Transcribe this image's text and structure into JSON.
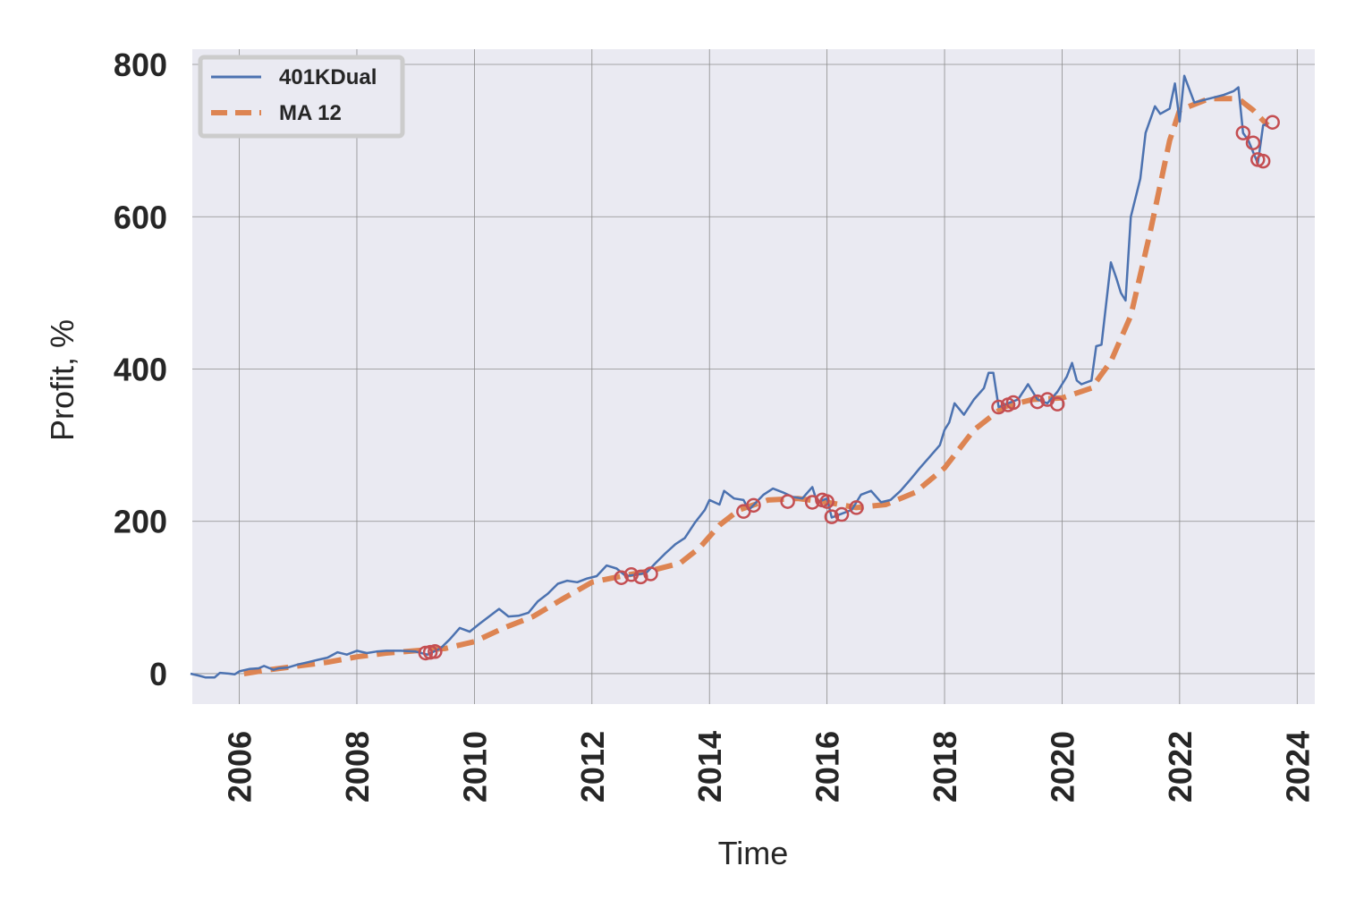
{
  "chart_data": {
    "type": "line",
    "xlabel": "Time",
    "ylabel": "Profit, %",
    "xlim": [
      2005.2,
      2024.3
    ],
    "ylim": [
      -40,
      820
    ],
    "x_ticks": [
      2006,
      2008,
      2010,
      2012,
      2014,
      2016,
      2018,
      2020,
      2022,
      2024
    ],
    "x_tick_labels": [
      "2006",
      "2008",
      "2010",
      "2012",
      "2014",
      "2016",
      "2018",
      "2020",
      "2022",
      "2024"
    ],
    "y_ticks": [
      0,
      200,
      400,
      600,
      800
    ],
    "y_tick_labels": [
      "0",
      "200",
      "400",
      "600",
      "800"
    ],
    "grid": true,
    "legend": {
      "position": "top-left",
      "entries": [
        {
          "label": "401KDual",
          "style": "solid",
          "color": "#4c72b0"
        },
        {
          "label": "MA 12",
          "style": "dashed",
          "color": "#dd8452"
        }
      ]
    },
    "colors": {
      "background": "#eaeaf2",
      "series_line": "#4c72b0",
      "ma_line": "#dd8452",
      "markers": "#c44e52",
      "grid": "#8c8c8c"
    },
    "series": [
      {
        "name": "401KDual",
        "style": "solid",
        "points": [
          [
            2005.17,
            0
          ],
          [
            2005.33,
            -3
          ],
          [
            2005.42,
            -5
          ],
          [
            2005.58,
            -5
          ],
          [
            2005.67,
            1
          ],
          [
            2005.83,
            0
          ],
          [
            2005.92,
            -1
          ],
          [
            2006.0,
            3
          ],
          [
            2006.17,
            6
          ],
          [
            2006.33,
            7
          ],
          [
            2006.42,
            10
          ],
          [
            2006.58,
            5
          ],
          [
            2006.67,
            7
          ],
          [
            2006.83,
            8
          ],
          [
            2007.0,
            12
          ],
          [
            2007.17,
            15
          ],
          [
            2007.33,
            18
          ],
          [
            2007.5,
            21
          ],
          [
            2007.67,
            28
          ],
          [
            2007.83,
            25
          ],
          [
            2008.0,
            30
          ],
          [
            2008.17,
            27
          ],
          [
            2008.33,
            29
          ],
          [
            2008.5,
            30
          ],
          [
            2008.75,
            30
          ],
          [
            2009.0,
            29
          ],
          [
            2009.2,
            25
          ],
          [
            2009.42,
            33
          ],
          [
            2009.58,
            45
          ],
          [
            2009.75,
            60
          ],
          [
            2009.92,
            55
          ],
          [
            2010.08,
            65
          ],
          [
            2010.25,
            75
          ],
          [
            2010.42,
            85
          ],
          [
            2010.58,
            75
          ],
          [
            2010.75,
            76
          ],
          [
            2010.92,
            80
          ],
          [
            2011.08,
            95
          ],
          [
            2011.25,
            105
          ],
          [
            2011.42,
            118
          ],
          [
            2011.58,
            122
          ],
          [
            2011.75,
            120
          ],
          [
            2011.92,
            125
          ],
          [
            2012.08,
            128
          ],
          [
            2012.25,
            142
          ],
          [
            2012.42,
            138
          ],
          [
            2012.58,
            128
          ],
          [
            2012.75,
            130
          ],
          [
            2012.92,
            132
          ],
          [
            2013.08,
            145
          ],
          [
            2013.25,
            158
          ],
          [
            2013.42,
            170
          ],
          [
            2013.58,
            178
          ],
          [
            2013.75,
            198
          ],
          [
            2013.92,
            215
          ],
          [
            2014.0,
            228
          ],
          [
            2014.17,
            222
          ],
          [
            2014.25,
            240
          ],
          [
            2014.42,
            230
          ],
          [
            2014.58,
            228
          ],
          [
            2014.67,
            215
          ],
          [
            2014.92,
            235
          ],
          [
            2015.08,
            243
          ],
          [
            2015.25,
            238
          ],
          [
            2015.42,
            232
          ],
          [
            2015.58,
            230
          ],
          [
            2015.75,
            245
          ],
          [
            2015.83,
            225
          ],
          [
            2016.0,
            230
          ],
          [
            2016.08,
            205
          ],
          [
            2016.25,
            210
          ],
          [
            2016.42,
            215
          ],
          [
            2016.58,
            235
          ],
          [
            2016.75,
            240
          ],
          [
            2016.92,
            225
          ],
          [
            2017.08,
            228
          ],
          [
            2017.25,
            240
          ],
          [
            2017.42,
            255
          ],
          [
            2017.58,
            270
          ],
          [
            2017.75,
            285
          ],
          [
            2017.92,
            300
          ],
          [
            2018.0,
            320
          ],
          [
            2018.08,
            330
          ],
          [
            2018.17,
            355
          ],
          [
            2018.33,
            340
          ],
          [
            2018.5,
            360
          ],
          [
            2018.67,
            375
          ],
          [
            2018.75,
            395
          ],
          [
            2018.83,
            395
          ],
          [
            2018.92,
            350
          ],
          [
            2019.08,
            355
          ],
          [
            2019.25,
            360
          ],
          [
            2019.42,
            380
          ],
          [
            2019.58,
            360
          ],
          [
            2019.75,
            355
          ],
          [
            2019.92,
            370
          ],
          [
            2020.08,
            390
          ],
          [
            2020.17,
            408
          ],
          [
            2020.25,
            385
          ],
          [
            2020.33,
            380
          ],
          [
            2020.5,
            385
          ],
          [
            2020.58,
            430
          ],
          [
            2020.67,
            432
          ],
          [
            2020.83,
            540
          ],
          [
            2020.92,
            520
          ],
          [
            2021.0,
            500
          ],
          [
            2021.08,
            490
          ],
          [
            2021.17,
            600
          ],
          [
            2021.33,
            650
          ],
          [
            2021.42,
            710
          ],
          [
            2021.58,
            745
          ],
          [
            2021.67,
            735
          ],
          [
            2021.83,
            742
          ],
          [
            2021.92,
            775
          ],
          [
            2022.0,
            725
          ],
          [
            2022.08,
            785
          ],
          [
            2022.25,
            750
          ],
          [
            2022.5,
            755
          ],
          [
            2022.75,
            760
          ],
          [
            2022.92,
            765
          ],
          [
            2023.0,
            770
          ],
          [
            2023.08,
            710
          ],
          [
            2023.17,
            700
          ],
          [
            2023.25,
            685
          ],
          [
            2023.33,
            670
          ],
          [
            2023.42,
            720
          ],
          [
            2023.5,
            722
          ]
        ]
      },
      {
        "name": "MA 12",
        "style": "dashed",
        "points": [
          [
            2006.08,
            0
          ],
          [
            2006.5,
            5
          ],
          [
            2007.0,
            10
          ],
          [
            2007.5,
            15
          ],
          [
            2008.0,
            22
          ],
          [
            2008.5,
            27
          ],
          [
            2009.0,
            30
          ],
          [
            2009.5,
            33
          ],
          [
            2010.0,
            42
          ],
          [
            2010.5,
            60
          ],
          [
            2011.0,
            75
          ],
          [
            2011.5,
            98
          ],
          [
            2012.0,
            120
          ],
          [
            2012.5,
            128
          ],
          [
            2013.0,
            135
          ],
          [
            2013.5,
            145
          ],
          [
            2013.83,
            165
          ],
          [
            2014.17,
            195
          ],
          [
            2014.5,
            215
          ],
          [
            2015.0,
            228
          ],
          [
            2015.5,
            230
          ],
          [
            2016.0,
            225
          ],
          [
            2016.5,
            218
          ],
          [
            2017.0,
            222
          ],
          [
            2017.5,
            238
          ],
          [
            2018.0,
            270
          ],
          [
            2018.5,
            320
          ],
          [
            2019.0,
            350
          ],
          [
            2019.5,
            360
          ],
          [
            2020.0,
            362
          ],
          [
            2020.5,
            375
          ],
          [
            2020.83,
            410
          ],
          [
            2021.17,
            470
          ],
          [
            2021.5,
            580
          ],
          [
            2021.83,
            700
          ],
          [
            2022.0,
            740
          ],
          [
            2022.5,
            755
          ],
          [
            2023.0,
            755
          ],
          [
            2023.25,
            740
          ],
          [
            2023.5,
            720
          ]
        ]
      }
    ],
    "markers": {
      "shape": "open-circle",
      "points": [
        [
          2009.17,
          27
        ],
        [
          2009.25,
          28
        ],
        [
          2009.33,
          29
        ],
        [
          2012.5,
          126
        ],
        [
          2012.67,
          130
        ],
        [
          2012.83,
          127
        ],
        [
          2013.0,
          131
        ],
        [
          2014.58,
          213
        ],
        [
          2014.75,
          221
        ],
        [
          2015.33,
          226
        ],
        [
          2015.75,
          225
        ],
        [
          2015.92,
          228
        ],
        [
          2016.0,
          226
        ],
        [
          2016.08,
          206
        ],
        [
          2016.25,
          209
        ],
        [
          2016.5,
          218
        ],
        [
          2018.92,
          350
        ],
        [
          2019.08,
          353
        ],
        [
          2019.17,
          356
        ],
        [
          2019.58,
          357
        ],
        [
          2019.75,
          360
        ],
        [
          2019.92,
          354
        ],
        [
          2023.08,
          710
        ],
        [
          2023.25,
          697
        ],
        [
          2023.33,
          675
        ],
        [
          2023.42,
          673
        ],
        [
          2023.58,
          724
        ]
      ]
    }
  }
}
